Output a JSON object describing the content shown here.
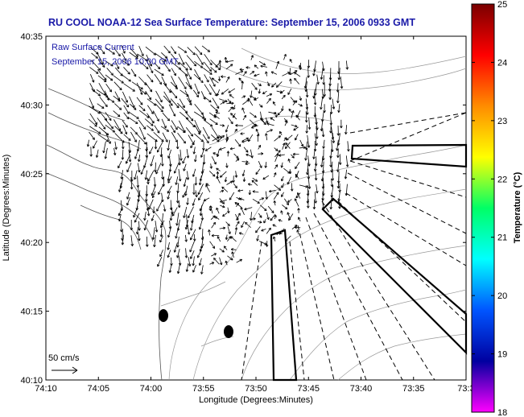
{
  "title": "RU COOL  NOAA-12  Sea Surface Temperature:  September 15, 2006 0933 GMT",
  "legend": {
    "line1": "Raw Surface Current",
    "line2": "September 15, 2006 10:00 GMT"
  },
  "scale_label": "50 cm/s",
  "xaxis": {
    "label": "Longitude (Degrees:Minutes)",
    "ticks": [
      "74:10",
      "74:05",
      "74:00",
      "73:55",
      "73:50",
      "73:45",
      "73:40",
      "73:35",
      "73:3"
    ]
  },
  "yaxis": {
    "label": "Latitude (Degrees:Minutes)",
    "ticks": [
      "40:35",
      "40:30",
      "40:25",
      "40:20",
      "40:15",
      "40:10"
    ]
  },
  "colorbar": {
    "label": "Temperature (°C)",
    "ticks": [
      "25",
      "24",
      "23",
      "22",
      "21",
      "20",
      "19",
      "18"
    ],
    "colors": [
      "#7a0000",
      "#ff0000",
      "#ff8c00",
      "#ffff00",
      "#00ff66",
      "#00ffff",
      "#0055ff",
      "#0000a0",
      "#ff00ff"
    ]
  },
  "chart_data": {
    "type": "map",
    "title": "RU COOL  NOAA-12  Sea Surface Temperature:  September 15, 2006 0933 GMT",
    "xlabel": "Longitude (Degrees:Minutes)",
    "ylabel": "Latitude (Degrees:Minutes)",
    "xlim": [
      "74:10",
      "73:30"
    ],
    "ylim": [
      "40:10",
      "40:35"
    ],
    "colorbar_range": [
      18,
      25
    ],
    "buoys": 2,
    "scale_vector": "50 cm/s"
  }
}
